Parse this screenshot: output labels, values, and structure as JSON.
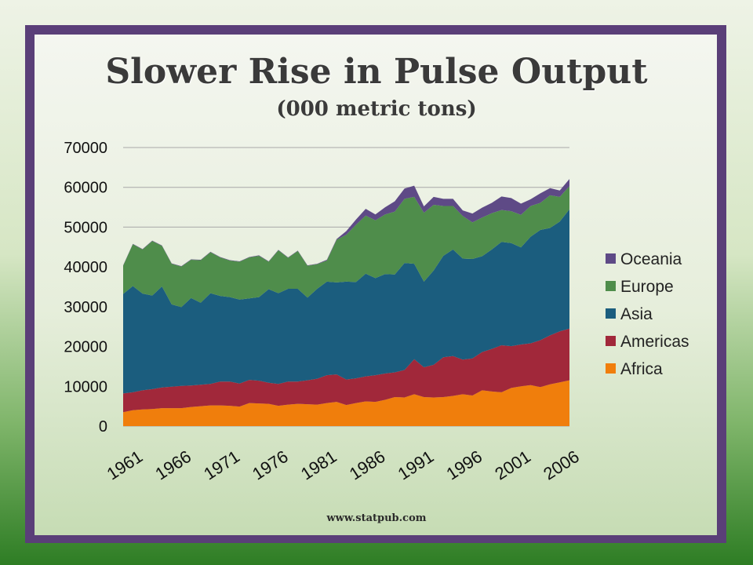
{
  "title": "Slower Rise in Pulse Output",
  "subtitle": "(000 metric tons)",
  "footer": "www.statpub.com",
  "chart_data": {
    "type": "area",
    "stacked": true,
    "x": [
      1961,
      1962,
      1963,
      1964,
      1965,
      1966,
      1967,
      1968,
      1969,
      1970,
      1971,
      1972,
      1973,
      1974,
      1975,
      1976,
      1977,
      1978,
      1979,
      1980,
      1981,
      1982,
      1983,
      1984,
      1985,
      1986,
      1987,
      1988,
      1989,
      1990,
      1991,
      1992,
      1993,
      1994,
      1995,
      1996,
      1997,
      1998,
      1999,
      2000,
      2001,
      2002,
      2003,
      2004,
      2005,
      2006,
      2007
    ],
    "x_tick_labels": [
      "1961",
      "1966",
      "1971",
      "1976",
      "1981",
      "1986",
      "1991",
      "1996",
      "2001",
      "2006"
    ],
    "x_tick_years": [
      1961,
      1966,
      1971,
      1976,
      1981,
      1986,
      1991,
      1996,
      2001,
      2006
    ],
    "y_ticks": [
      0,
      10000,
      20000,
      30000,
      40000,
      50000,
      60000,
      70000
    ],
    "y_tick_labels": [
      "0",
      "10000",
      "20000",
      "30000",
      "40000",
      "50000",
      "60000",
      "70000"
    ],
    "ylim": [
      0,
      70000
    ],
    "grid": true,
    "legend_position": "right",
    "series": [
      {
        "name": "Africa",
        "color": "#f07e0c",
        "values": [
          3500,
          4000,
          4200,
          4300,
          4500,
          4500,
          4500,
          4800,
          5000,
          5200,
          5200,
          5100,
          4900,
          5800,
          5700,
          5600,
          5100,
          5400,
          5600,
          5500,
          5400,
          5800,
          6100,
          5300,
          5800,
          6200,
          6100,
          6600,
          7300,
          7200,
          8000,
          7300,
          7200,
          7300,
          7600,
          8000,
          7700,
          9000,
          8700,
          8500,
          9600,
          10000,
          10300,
          9800,
          10500,
          11000,
          11500
        ]
      },
      {
        "name": "Americas",
        "color": "#a1283a",
        "values": [
          4700,
          4500,
          4800,
          5000,
          5200,
          5400,
          5600,
          5400,
          5400,
          5400,
          6000,
          6100,
          5800,
          5800,
          5700,
          5300,
          5500,
          5800,
          5600,
          6000,
          6500,
          7000,
          6900,
          6400,
          6200,
          6300,
          6700,
          6600,
          6200,
          6900,
          8800,
          7500,
          8200,
          10000,
          10000,
          8700,
          9300,
          9600,
          10700,
          11800,
          10500,
          10500,
          10500,
          11800,
          12300,
          12800,
          13000
        ]
      },
      {
        "name": "Asia",
        "color": "#1b5d7e",
        "values": [
          25000,
          26700,
          24300,
          23500,
          25400,
          20700,
          19800,
          22000,
          20600,
          22800,
          21500,
          21200,
          21100,
          20500,
          21000,
          23500,
          22800,
          23300,
          23300,
          20800,
          22600,
          23500,
          23100,
          24600,
          24200,
          25800,
          24400,
          25000,
          24600,
          26900,
          24000,
          21500,
          23700,
          25500,
          26800,
          25400,
          25000,
          24100,
          25000,
          26000,
          25900,
          24400,
          26800,
          27700,
          27000,
          27600,
          30000
        ]
      },
      {
        "name": "Europe",
        "color": "#4f8d4b",
        "values": [
          7100,
          10500,
          11100,
          13700,
          10200,
          10200,
          10200,
          9600,
          10700,
          10300,
          9700,
          9200,
          9500,
          10300,
          10400,
          6900,
          10800,
          7800,
          9500,
          8000,
          6200,
          5300,
          10700,
          11800,
          14400,
          14600,
          14500,
          15000,
          15800,
          16100,
          16800,
          17300,
          16500,
          12500,
          10900,
          10700,
          9200,
          9700,
          9100,
          8000,
          8000,
          8200,
          7700,
          6800,
          8200,
          6200,
          5800
        ]
      },
      {
        "name": "Oceania",
        "color": "#5e4a86",
        "values": [
          100,
          100,
          100,
          100,
          100,
          100,
          100,
          100,
          100,
          100,
          100,
          100,
          100,
          100,
          100,
          100,
          100,
          100,
          100,
          100,
          100,
          200,
          200,
          900,
          1300,
          1700,
          1500,
          1800,
          2600,
          2600,
          2800,
          1600,
          2000,
          1800,
          1800,
          1400,
          2200,
          2500,
          2600,
          3400,
          3300,
          2800,
          1700,
          2400,
          1800,
          1600,
          1800
        ]
      }
    ]
  }
}
